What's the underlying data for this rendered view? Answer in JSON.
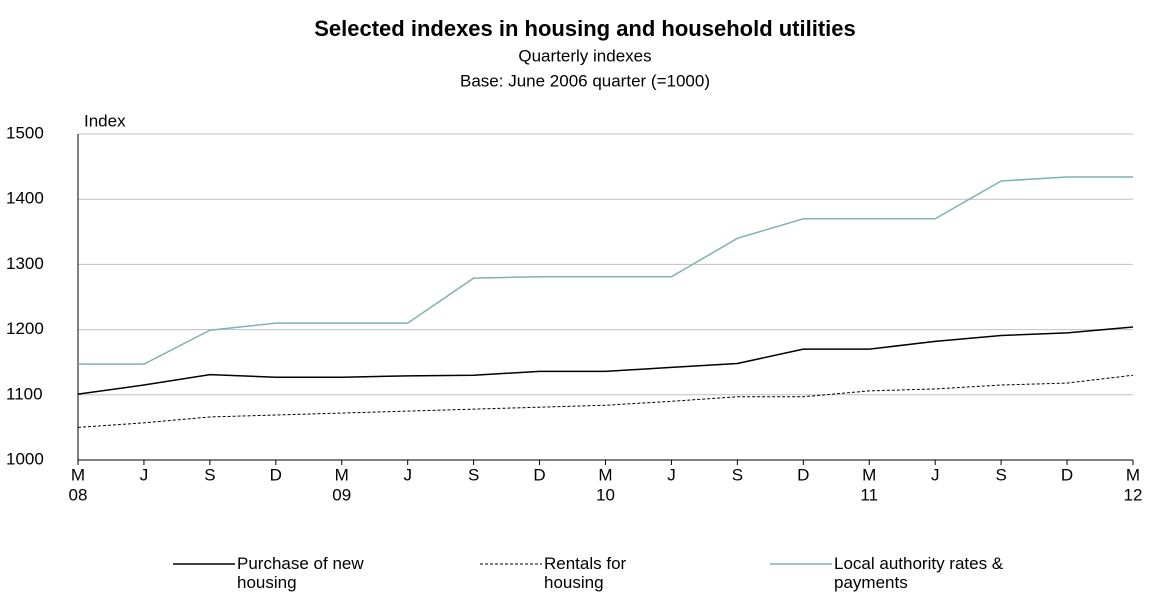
{
  "chart_data": {
    "type": "line",
    "title": "Selected indexes in housing and household utilities",
    "subtitle": "Quarterly  indexes",
    "note": "Base: June 2006 quarter (=1000)",
    "y_label": "Index",
    "categories": [
      "M",
      "J",
      "S",
      "D",
      "M",
      "J",
      "S",
      "D",
      "M",
      "J",
      "S",
      "D",
      "M",
      "J",
      "S",
      "D",
      "M"
    ],
    "year_labels": [
      "08",
      null,
      null,
      null,
      "09",
      null,
      null,
      null,
      "10",
      null,
      null,
      null,
      "11",
      null,
      null,
      null,
      "12"
    ],
    "series": [
      {
        "name": "Purchase of new housing",
        "color": "#000000",
        "line_style": "solid",
        "values": [
          1101,
          1115,
          1131,
          1127,
          1127,
          1129,
          1130,
          1136,
          1136,
          1142,
          1148,
          1170,
          1170,
          1182,
          1191,
          1195,
          1204
        ]
      },
      {
        "name": "Rentals for housing",
        "color": "#000000",
        "line_style": "dashed",
        "values": [
          1050,
          1057,
          1066,
          1069,
          1072,
          1075,
          1078,
          1081,
          1084,
          1090,
          1097,
          1097,
          1106,
          1109,
          1115,
          1118,
          1130
        ]
      },
      {
        "name": "Local authority rates & payments",
        "color": "#7fb2b2",
        "line_style": "solid",
        "values": [
          1147,
          1147,
          1199,
          1210,
          1210,
          1210,
          1279,
          1281,
          1281,
          1281,
          1340,
          1370,
          1370,
          1370,
          1428,
          1434,
          1434
        ]
      }
    ],
    "ylim": [
      1000,
      1500
    ],
    "yticks": [
      1000,
      1100,
      1200,
      1300,
      1400,
      1500
    ],
    "grid": true
  }
}
